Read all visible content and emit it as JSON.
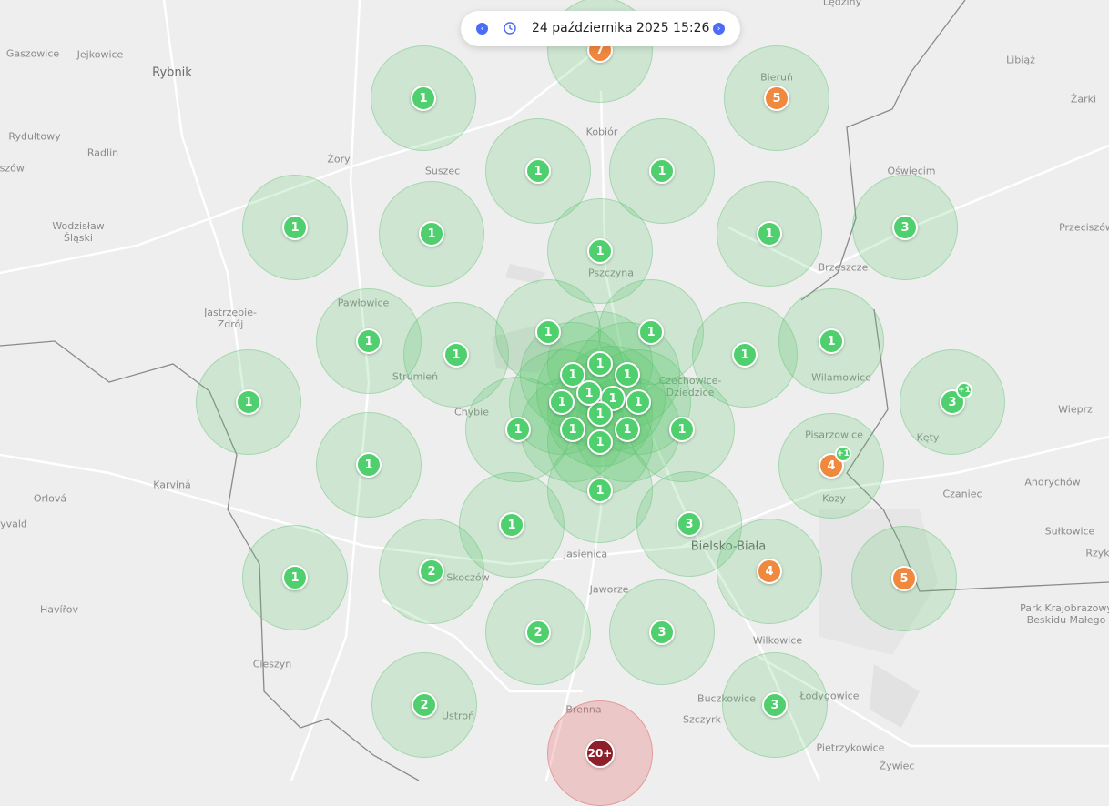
{
  "toolbar": {
    "datetime": "24 października 2025 15:26",
    "prev_icon": "chevron-left-icon",
    "next_icon": "chevron-right-icon",
    "clock_icon": "clock-icon",
    "accent": "#4a6cf7"
  },
  "colors": {
    "green": "#4fcf6e",
    "orange": "#f0883e",
    "darkred": "#8e1f2a"
  },
  "places": [
    "Gaszowice",
    "Jejkowice",
    "Rybnik",
    "Lędziny",
    "Libiąż",
    "Żarki",
    "Bieruń",
    "Kobiór",
    "Rydułtowy",
    "Radlin",
    "Pszów",
    "Żory",
    "Suszec",
    "Oświęcim",
    "Wodzisław\nŚląski",
    "Przeciszów",
    "Brzeszcze",
    "Pszczyna",
    "Pawłowice",
    "Jastrzębie-\nZdrój",
    "Strumień",
    "Wilamowice",
    "Czechowice-\nDziedzice",
    "Chybie",
    "Wieprz",
    "Kęty",
    "Pisarzowice",
    "Karviná",
    "Orlová",
    "Kozy",
    "Czaniec",
    "Andrychów",
    "Fryvald",
    "Bielsko-Biała",
    "Sułkowice",
    "Rzyki",
    "Jasienica",
    "Skoczów",
    "Jaworze",
    "Park Krajobrazowy\nBeskidu Małego",
    "Havířov",
    "Wilkowice",
    "Cieszyn",
    "Ustroń",
    "Brenna",
    "Szczyrk",
    "Buczkowice",
    "Łodygowice",
    "Pietrzykowice",
    "Żywiec"
  ],
  "clusters": [
    {
      "count": "7",
      "status": "orange"
    },
    {
      "count": "1",
      "status": "green"
    },
    {
      "count": "5",
      "status": "orange"
    },
    {
      "count": "1",
      "status": "green"
    },
    {
      "count": "1",
      "status": "green"
    },
    {
      "count": "1",
      "status": "green"
    },
    {
      "count": "1",
      "status": "green"
    },
    {
      "count": "1",
      "status": "green"
    },
    {
      "count": "1",
      "status": "green"
    },
    {
      "count": "3",
      "status": "green"
    },
    {
      "count": "1",
      "status": "green"
    },
    {
      "count": "1",
      "status": "green"
    },
    {
      "count": "1",
      "status": "green"
    },
    {
      "count": "1",
      "status": "green"
    },
    {
      "count": "1",
      "status": "green"
    },
    {
      "count": "1",
      "status": "green"
    },
    {
      "count": "1",
      "status": "green"
    },
    {
      "count": "3",
      "status": "green",
      "extra": "+1"
    },
    {
      "count": "4",
      "status": "orange",
      "extra": "+1"
    },
    {
      "count": "1",
      "status": "green"
    },
    {
      "count": "1",
      "status": "green"
    },
    {
      "count": "1",
      "status": "green"
    },
    {
      "count": "1",
      "status": "green"
    },
    {
      "count": "1",
      "status": "green"
    },
    {
      "count": "1",
      "status": "green"
    },
    {
      "count": "1",
      "status": "green"
    },
    {
      "count": "1",
      "status": "green"
    },
    {
      "count": "1",
      "status": "green"
    },
    {
      "count": "1",
      "status": "green"
    },
    {
      "count": "1",
      "status": "green"
    },
    {
      "count": "1",
      "status": "green"
    },
    {
      "count": "1",
      "status": "green"
    },
    {
      "count": "1",
      "status": "green"
    },
    {
      "count": "1",
      "status": "green"
    },
    {
      "count": "1",
      "status": "green"
    },
    {
      "count": "3",
      "status": "green"
    },
    {
      "count": "2",
      "status": "green"
    },
    {
      "count": "4",
      "status": "orange"
    },
    {
      "count": "5",
      "status": "orange"
    },
    {
      "count": "1",
      "status": "green"
    },
    {
      "count": "2",
      "status": "green"
    },
    {
      "count": "3",
      "status": "green"
    },
    {
      "count": "2",
      "status": "green"
    },
    {
      "count": "3",
      "status": "green"
    },
    {
      "count": "20+",
      "status": "darkred"
    }
  ]
}
